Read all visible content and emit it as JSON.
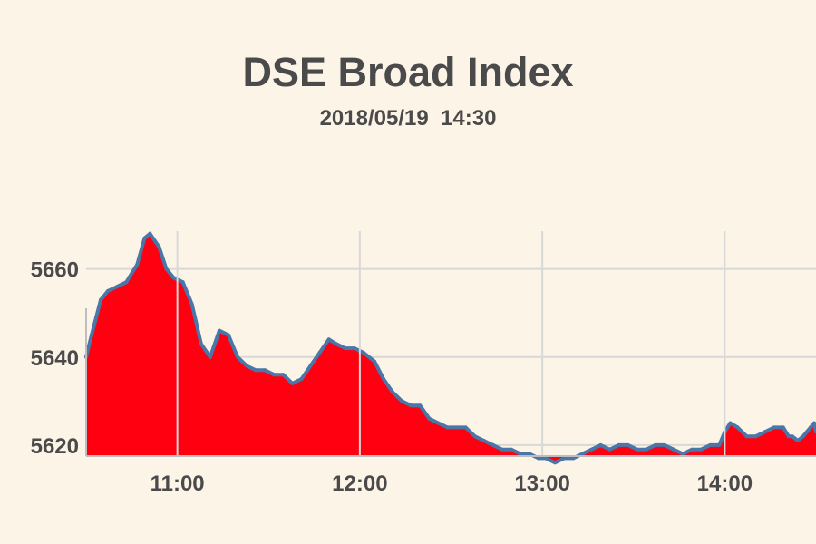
{
  "chart_data": {
    "type": "area",
    "title": "DSE Broad Index",
    "subtitle": "2018/05/19  14:30",
    "xlabel": "",
    "ylabel": "",
    "x_unit": "time of day (hours)",
    "xlim": [
      10.5,
      14.5
    ],
    "ylim": [
      5617.5,
      5683
    ],
    "x_ticks": [
      {
        "value": 11,
        "label": "11:00"
      },
      {
        "value": 12,
        "label": "12:00"
      },
      {
        "value": 13,
        "label": "13:00"
      },
      {
        "value": 14,
        "label": "14:00"
      }
    ],
    "y_ticks": [
      {
        "value": 5620,
        "label": "5620"
      },
      {
        "value": 5640,
        "label": "5640"
      },
      {
        "value": 5660,
        "label": "5660"
      }
    ],
    "grid": true,
    "fill_color": "#ff0010",
    "line_color": "#4a76a8",
    "grid_color": "#d8d8d8",
    "series": [
      {
        "x": [
          10.5,
          10.53,
          10.58,
          10.62,
          10.67,
          10.72,
          10.78,
          10.82,
          10.85,
          10.9,
          10.94,
          10.98,
          11.03,
          11.08,
          11.13,
          11.18,
          11.23,
          11.28,
          11.33,
          11.38,
          11.43,
          11.48,
          11.53,
          11.58,
          11.63,
          11.68,
          11.73,
          11.78,
          11.83,
          11.87,
          11.92,
          11.97,
          12.02,
          12.08,
          12.13,
          12.18,
          12.23,
          12.28,
          12.33,
          12.38,
          12.43,
          12.48,
          12.53,
          12.58,
          12.63,
          12.68,
          12.73,
          12.78,
          12.83,
          12.88,
          12.93,
          12.98,
          13.02,
          13.07,
          13.12,
          13.17,
          13.22,
          13.27,
          13.32,
          13.37,
          13.42,
          13.47,
          13.52,
          13.57,
          13.62,
          13.67,
          13.72,
          13.77,
          13.82,
          13.87,
          13.92,
          13.97,
          14.0,
          14.03,
          14.07,
          14.12,
          14.17,
          14.22,
          14.27,
          14.32,
          14.35,
          14.37,
          14.4,
          14.43,
          14.45,
          14.47,
          14.49,
          14.5
        ],
        "y": [
          5640,
          5645,
          5653,
          5655,
          5656,
          5657,
          5661,
          5667,
          5668,
          5665,
          5660,
          5658,
          5657,
          5652,
          5643,
          5640,
          5646,
          5645,
          5640,
          5638,
          5637,
          5637,
          5636,
          5636,
          5634,
          5635,
          5638,
          5641,
          5644,
          5643,
          5642,
          5642,
          5641,
          5639,
          5635,
          5632,
          5630,
          5629,
          5629,
          5626,
          5625,
          5624,
          5624,
          5624,
          5622,
          5621,
          5620,
          5619,
          5619,
          5618,
          5618,
          5617,
          5617,
          5616,
          5617,
          5617,
          5618,
          5619,
          5620,
          5619,
          5620,
          5620,
          5619,
          5619,
          5620,
          5620,
          5619,
          5618,
          5619,
          5619,
          5620,
          5620,
          5623,
          5625,
          5624,
          5622,
          5622,
          5623,
          5624,
          5624,
          5622,
          5622,
          5621,
          5622,
          5623,
          5624,
          5625,
          5623
        ]
      }
    ]
  }
}
